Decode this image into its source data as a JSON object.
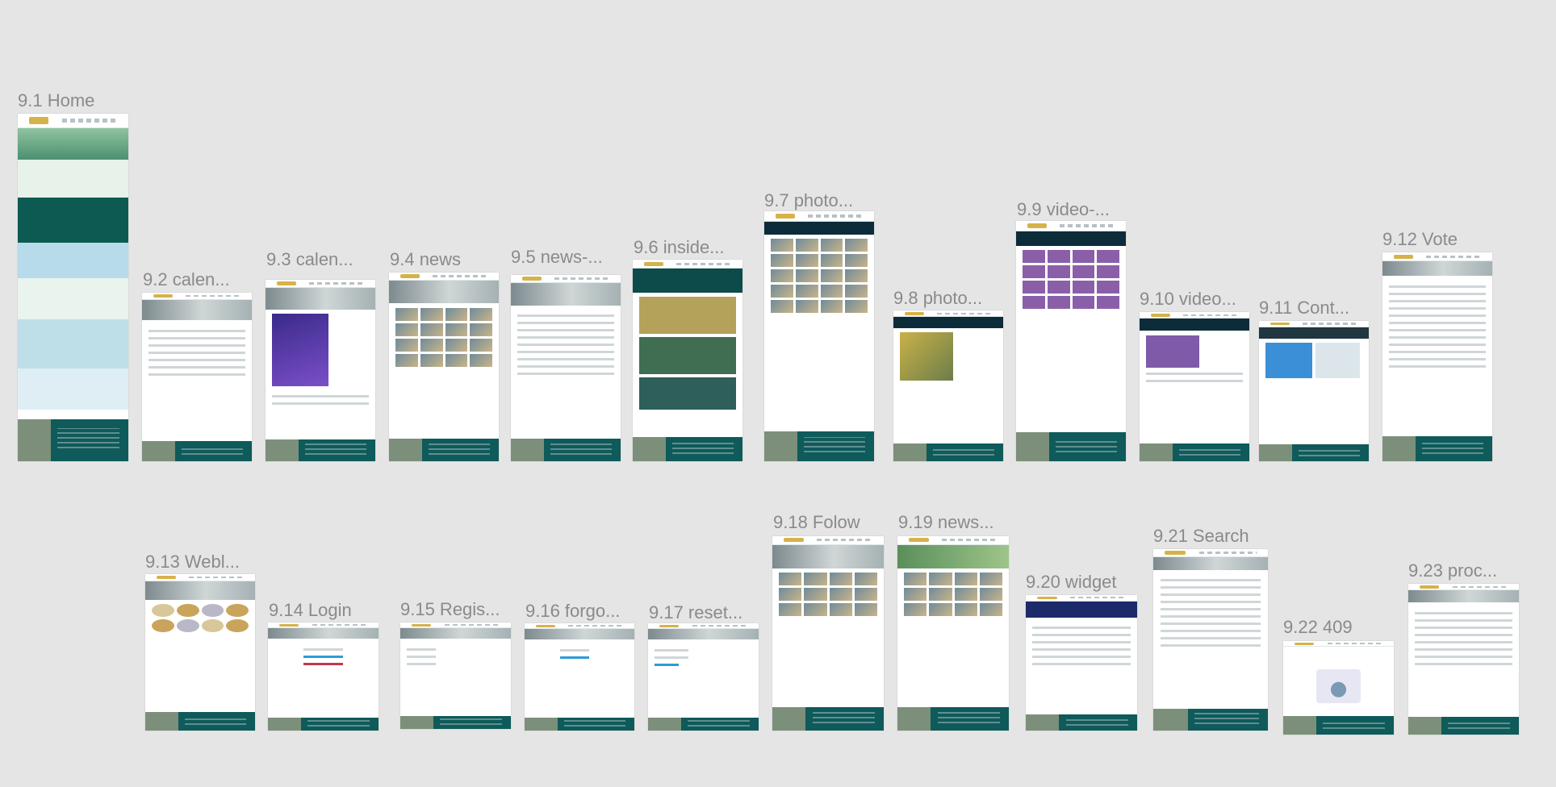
{
  "canvas": {
    "background": "#e5e5e5",
    "label_color": "#8a8a8a"
  },
  "frames": [
    {
      "label": "9.1 Home"
    },
    {
      "label": "9.2 calen..."
    },
    {
      "label": "9.3 calen..."
    },
    {
      "label": "9.4 news"
    },
    {
      "label": "9.5 news-..."
    },
    {
      "label": "9.6 inside..."
    },
    {
      "label": "9.7 photo..."
    },
    {
      "label": "9.8 photo..."
    },
    {
      "label": "9.9 video-..."
    },
    {
      "label": "9.10 video..."
    },
    {
      "label": "9.11 Cont..."
    },
    {
      "label": "9.12 Vote"
    },
    {
      "label": "9.13 Webl..."
    },
    {
      "label": "9.14 Login"
    },
    {
      "label": "9.15 Regis..."
    },
    {
      "label": "9.16 forgo..."
    },
    {
      "label": "9.17 reset..."
    },
    {
      "label": "9.18 Folow"
    },
    {
      "label": "9.19 news..."
    },
    {
      "label": "9.20 widget"
    },
    {
      "label": "9.21 Search"
    },
    {
      "label": "9.22 409"
    },
    {
      "label": "9.23 proc..."
    }
  ],
  "colors": {
    "footer": "#0f5a5a",
    "accent": "#2e9bd6",
    "frame_bg": "#ffffff"
  }
}
